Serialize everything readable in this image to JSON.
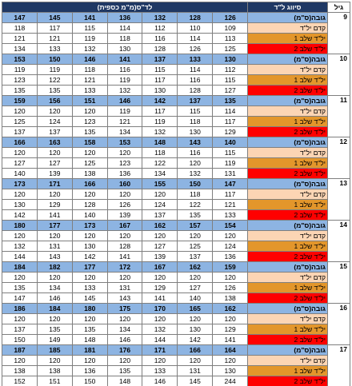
{
  "header": {
    "age": "גיל",
    "class": "סיווג ל\"ד",
    "bp": "לד\"ס(מ\"מ כספית)"
  },
  "blocks": [
    {
      "age": "9",
      "rows": [
        {
          "label": "גובה(ס\"מ)",
          "values": [
            126,
            128,
            132,
            136,
            141,
            145,
            147
          ]
        },
        {
          "label": "קדם יל\"ד",
          "values": [
            109,
            110,
            112,
            114,
            115,
            117,
            118
          ]
        },
        {
          "label": "יל\"ד שלב 1",
          "values": [
            113,
            114,
            116,
            118,
            119,
            121,
            121
          ]
        },
        {
          "label": "יל\"ד שלב 2",
          "values": [
            125,
            126,
            128,
            130,
            132,
            133,
            134
          ]
        }
      ]
    },
    {
      "age": "10",
      "rows": [
        {
          "label": "גובה(ס\"מ)",
          "values": [
            130,
            133,
            137,
            141,
            146,
            150,
            153
          ]
        },
        {
          "label": "קדם יל\"ד",
          "values": [
            112,
            114,
            115,
            116,
            118,
            119,
            119
          ]
        },
        {
          "label": "יל\"ד שלב 1",
          "values": [
            115,
            116,
            117,
            119,
            121,
            122,
            123
          ]
        },
        {
          "label": "יל\"ד שלב 2",
          "values": [
            127,
            128,
            130,
            132,
            133,
            135,
            135
          ]
        }
      ]
    },
    {
      "age": "11",
      "rows": [
        {
          "label": "גובה(ס\"מ)",
          "values": [
            135,
            137,
            142,
            146,
            151,
            156,
            159
          ]
        },
        {
          "label": "קדם יל\"ד",
          "values": [
            114,
            115,
            117,
            119,
            120,
            120,
            120
          ]
        },
        {
          "label": "יל\"ד שלב 1",
          "values": [
            117,
            118,
            119,
            121,
            123,
            124,
            125
          ]
        },
        {
          "label": "יל\"ד שלב 2",
          "values": [
            129,
            130,
            132,
            134,
            135,
            137,
            137
          ]
        }
      ]
    },
    {
      "age": "12",
      "rows": [
        {
          "label": "גובה(ס\"מ)",
          "values": [
            140,
            143,
            148,
            153,
            158,
            163,
            166
          ]
        },
        {
          "label": "קדם יל\"ד",
          "values": [
            115,
            116,
            118,
            120,
            120,
            120,
            120
          ]
        },
        {
          "label": "יל\"ד שלב 1",
          "values": [
            119,
            120,
            122,
            123,
            125,
            127,
            127
          ]
        },
        {
          "label": "יל\"ד שלב 2",
          "values": [
            131,
            132,
            134,
            136,
            138,
            139,
            140
          ]
        }
      ]
    },
    {
      "age": "13",
      "rows": [
        {
          "label": "גובה(ס\"מ)",
          "values": [
            147,
            150,
            155,
            160,
            166,
            171,
            173
          ]
        },
        {
          "label": "קדם יל\"ד",
          "values": [
            117,
            118,
            120,
            120,
            120,
            120,
            120
          ]
        },
        {
          "label": "יל\"ד שלב 1",
          "values": [
            121,
            122,
            124,
            126,
            128,
            129,
            130
          ]
        },
        {
          "label": "יל\"ד שלב 2",
          "values": [
            133,
            135,
            137,
            139,
            140,
            141,
            142
          ]
        }
      ]
    },
    {
      "age": "14",
      "rows": [
        {
          "label": "גובה(ס\"מ)",
          "values": [
            154,
            157,
            162,
            167,
            173,
            177,
            180
          ]
        },
        {
          "label": "קדם יל\"ד",
          "values": [
            120,
            120,
            120,
            120,
            120,
            120,
            120
          ]
        },
        {
          "label": "יל\"ד שלב 1",
          "values": [
            124,
            125,
            127,
            128,
            130,
            131,
            132
          ]
        },
        {
          "label": "יל\"ד שלב 2",
          "values": [
            136,
            137,
            139,
            141,
            142,
            143,
            144
          ]
        }
      ]
    },
    {
      "age": "15",
      "rows": [
        {
          "label": "גובה(ס\"מ)",
          "values": [
            159,
            162,
            167,
            172,
            177,
            182,
            184
          ]
        },
        {
          "label": "קדם יל\"ד",
          "values": [
            120,
            120,
            120,
            120,
            120,
            120,
            120
          ]
        },
        {
          "label": "יל\"ד שלב 1",
          "values": [
            126,
            127,
            129,
            131,
            133,
            134,
            135
          ]
        },
        {
          "label": "יל\"ד שלב 2",
          "values": [
            138,
            140,
            141,
            143,
            145,
            146,
            147
          ]
        }
      ]
    },
    {
      "age": "16",
      "rows": [
        {
          "label": "גובה(ס\"מ)",
          "values": [
            162,
            165,
            170,
            175,
            180,
            184,
            186
          ]
        },
        {
          "label": "קדם יל\"ד",
          "values": [
            120,
            120,
            120,
            120,
            120,
            120,
            120
          ]
        },
        {
          "label": "יל\"ד שלב 1",
          "values": [
            129,
            130,
            132,
            134,
            135,
            135,
            137
          ]
        },
        {
          "label": "יל\"ד שלב 2",
          "values": [
            141,
            142,
            144,
            146,
            148,
            149,
            150
          ]
        }
      ]
    },
    {
      "age": "17",
      "rows": [
        {
          "label": "גובה(ס\"מ)",
          "values": [
            164,
            166,
            171,
            176,
            181,
            185,
            187
          ]
        },
        {
          "label": "קדם יל\"ד",
          "values": [
            120,
            120,
            120,
            120,
            120,
            120,
            120
          ]
        },
        {
          "label": "יל\"ד שלב 1",
          "values": [
            130,
            131,
            133,
            135,
            136,
            138,
            138
          ]
        },
        {
          "label": "יל\"ד שלב 2",
          "values": [
            244,
            145,
            146,
            148,
            150,
            151,
            152
          ]
        }
      ]
    }
  ]
}
